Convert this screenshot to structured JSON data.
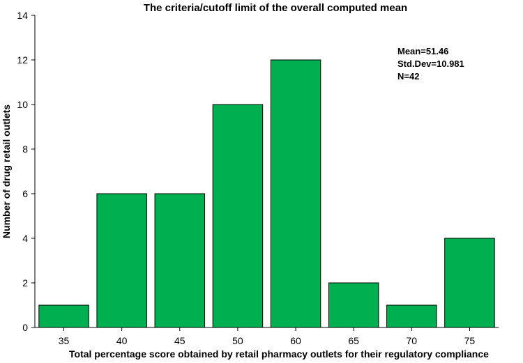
{
  "chart_data": {
    "type": "bar",
    "title": "The criteria/cutoff limit of the overall computed mean",
    "xlabel": "Total percentage score obtained by retail pharmacy outlets for their regulatory compliance",
    "ylabel": "Number of drug retail outlets",
    "categories": [
      "35",
      "40",
      "45",
      "50",
      "60",
      "65",
      "70",
      "75"
    ],
    "values": [
      1,
      6,
      6,
      10,
      12,
      2,
      1,
      4
    ],
    "ylim": [
      0,
      14
    ],
    "yticks": [
      0,
      2,
      4,
      6,
      8,
      10,
      12,
      14
    ],
    "bar_color": "#00b050",
    "grid": false,
    "annotation": {
      "lines": [
        "Mean=51.46",
        "Std.Dev=10.981",
        "N=42"
      ],
      "placement": "top-right"
    }
  }
}
